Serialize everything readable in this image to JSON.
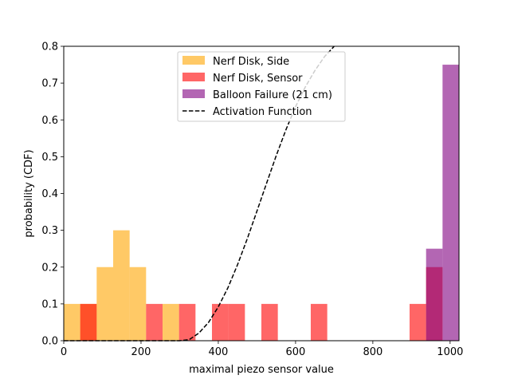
{
  "chart_data": {
    "type": "histogram",
    "xlabel": "maximal piezo sensor value",
    "ylabel": "probability (CDF)",
    "xlim": [
      0,
      1023
    ],
    "ylim": [
      0,
      0.8
    ],
    "xticks": [
      0,
      200,
      400,
      600,
      800,
      1000
    ],
    "xtick_labels": [
      "0",
      "200",
      "400",
      "600",
      "800",
      "1000"
    ],
    "yticks": [
      0.0,
      0.1,
      0.2,
      0.3,
      0.4,
      0.5,
      0.6,
      0.7,
      0.8
    ],
    "ytick_labels": [
      "0.0",
      "0.1",
      "0.2",
      "0.3",
      "0.4",
      "0.5",
      "0.6",
      "0.7",
      "0.8"
    ],
    "bin_width": 42.6,
    "legend_position": "upper center",
    "grid": false,
    "series": [
      {
        "name": "Nerf Disk, Side",
        "color": "#ffa500",
        "alpha": 0.6,
        "bins": [
          {
            "x0": 0,
            "x1": 42.6,
            "y": 0.1
          },
          {
            "x0": 42.6,
            "x1": 85.2,
            "y": 0.1
          },
          {
            "x0": 85.2,
            "x1": 127.9,
            "y": 0.2
          },
          {
            "x0": 127.9,
            "x1": 170.5,
            "y": 0.3
          },
          {
            "x0": 170.5,
            "x1": 213.1,
            "y": 0.2
          },
          {
            "x0": 255.7,
            "x1": 298.4,
            "y": 0.1
          }
        ]
      },
      {
        "name": "Nerf Disk, Sensor",
        "color": "#ff0000",
        "alpha": 0.6,
        "bins": [
          {
            "x0": 42.6,
            "x1": 85.2,
            "y": 0.1
          },
          {
            "x0": 213.1,
            "x1": 255.7,
            "y": 0.1
          },
          {
            "x0": 298.4,
            "x1": 341.0,
            "y": 0.1
          },
          {
            "x0": 383.6,
            "x1": 426.2,
            "y": 0.1
          },
          {
            "x0": 426.2,
            "x1": 468.9,
            "y": 0.1
          },
          {
            "x0": 511.5,
            "x1": 554.1,
            "y": 0.1
          },
          {
            "x0": 639.3,
            "x1": 682.0,
            "y": 0.1
          },
          {
            "x0": 895.1,
            "x1": 937.8,
            "y": 0.1
          },
          {
            "x0": 937.8,
            "x1": 980.4,
            "y": 0.2
          }
        ]
      },
      {
        "name": "Balloon Failure (21 cm)",
        "color": "#800080",
        "alpha": 0.6,
        "bins": [
          {
            "x0": 937.8,
            "x1": 980.4,
            "y": 0.25
          },
          {
            "x0": 980.4,
            "x1": 1023,
            "y": 0.75
          }
        ]
      }
    ],
    "activation_function": {
      "name": "Activation Function",
      "color": "#000000",
      "style": "dashed",
      "points": [
        {
          "x": 0,
          "y": 0.0
        },
        {
          "x": 300,
          "y": 0.0
        },
        {
          "x": 325,
          "y": 0.003
        },
        {
          "x": 350,
          "y": 0.021
        },
        {
          "x": 375,
          "y": 0.05
        },
        {
          "x": 400,
          "y": 0.092
        },
        {
          "x": 425,
          "y": 0.144
        },
        {
          "x": 450,
          "y": 0.207
        },
        {
          "x": 475,
          "y": 0.277
        },
        {
          "x": 500,
          "y": 0.352
        },
        {
          "x": 525,
          "y": 0.428
        },
        {
          "x": 550,
          "y": 0.503
        },
        {
          "x": 575,
          "y": 0.573
        },
        {
          "x": 600,
          "y": 0.636
        },
        {
          "x": 625,
          "y": 0.689
        },
        {
          "x": 650,
          "y": 0.734
        },
        {
          "x": 675,
          "y": 0.772
        },
        {
          "x": 700,
          "y": 0.8
        }
      ]
    }
  }
}
